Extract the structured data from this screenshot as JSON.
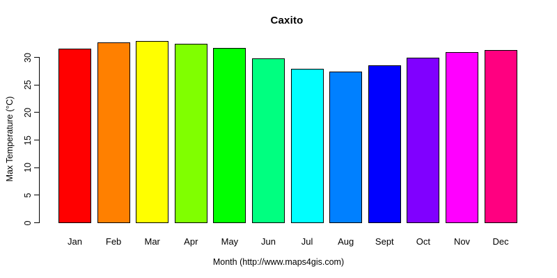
{
  "chart_data": {
    "type": "bar",
    "title": "Caxito",
    "xlabel": "Month (http://www.maps4gis.com)",
    "ylabel": "Max Temperature (°C)",
    "categories": [
      "Jan",
      "Feb",
      "Mar",
      "Apr",
      "May",
      "Jun",
      "Jul",
      "Aug",
      "Sept",
      "Oct",
      "Nov",
      "Dec"
    ],
    "series": [
      {
        "name": "Max Temperature (°C)",
        "values": [
          31.5,
          32.6,
          32.9,
          32.4,
          31.6,
          29.8,
          27.8,
          27.4,
          28.5,
          29.9,
          30.9,
          31.3
        ]
      }
    ],
    "bar_colors": [
      "#FF0000",
      "#FF8000",
      "#FFFF00",
      "#80FF00",
      "#00FF00",
      "#00FF80",
      "#00FFFF",
      "#0080FF",
      "#0000FF",
      "#8000FF",
      "#FF00FF",
      "#FF0080"
    ],
    "bar_border_color": "#000000",
    "yticks": [
      0,
      5,
      10,
      15,
      20,
      25,
      30
    ],
    "ylim": [
      0,
      33.5
    ],
    "grid": false,
    "legend": "none",
    "background": "#FFFFFF",
    "axis_color": "#000000"
  }
}
